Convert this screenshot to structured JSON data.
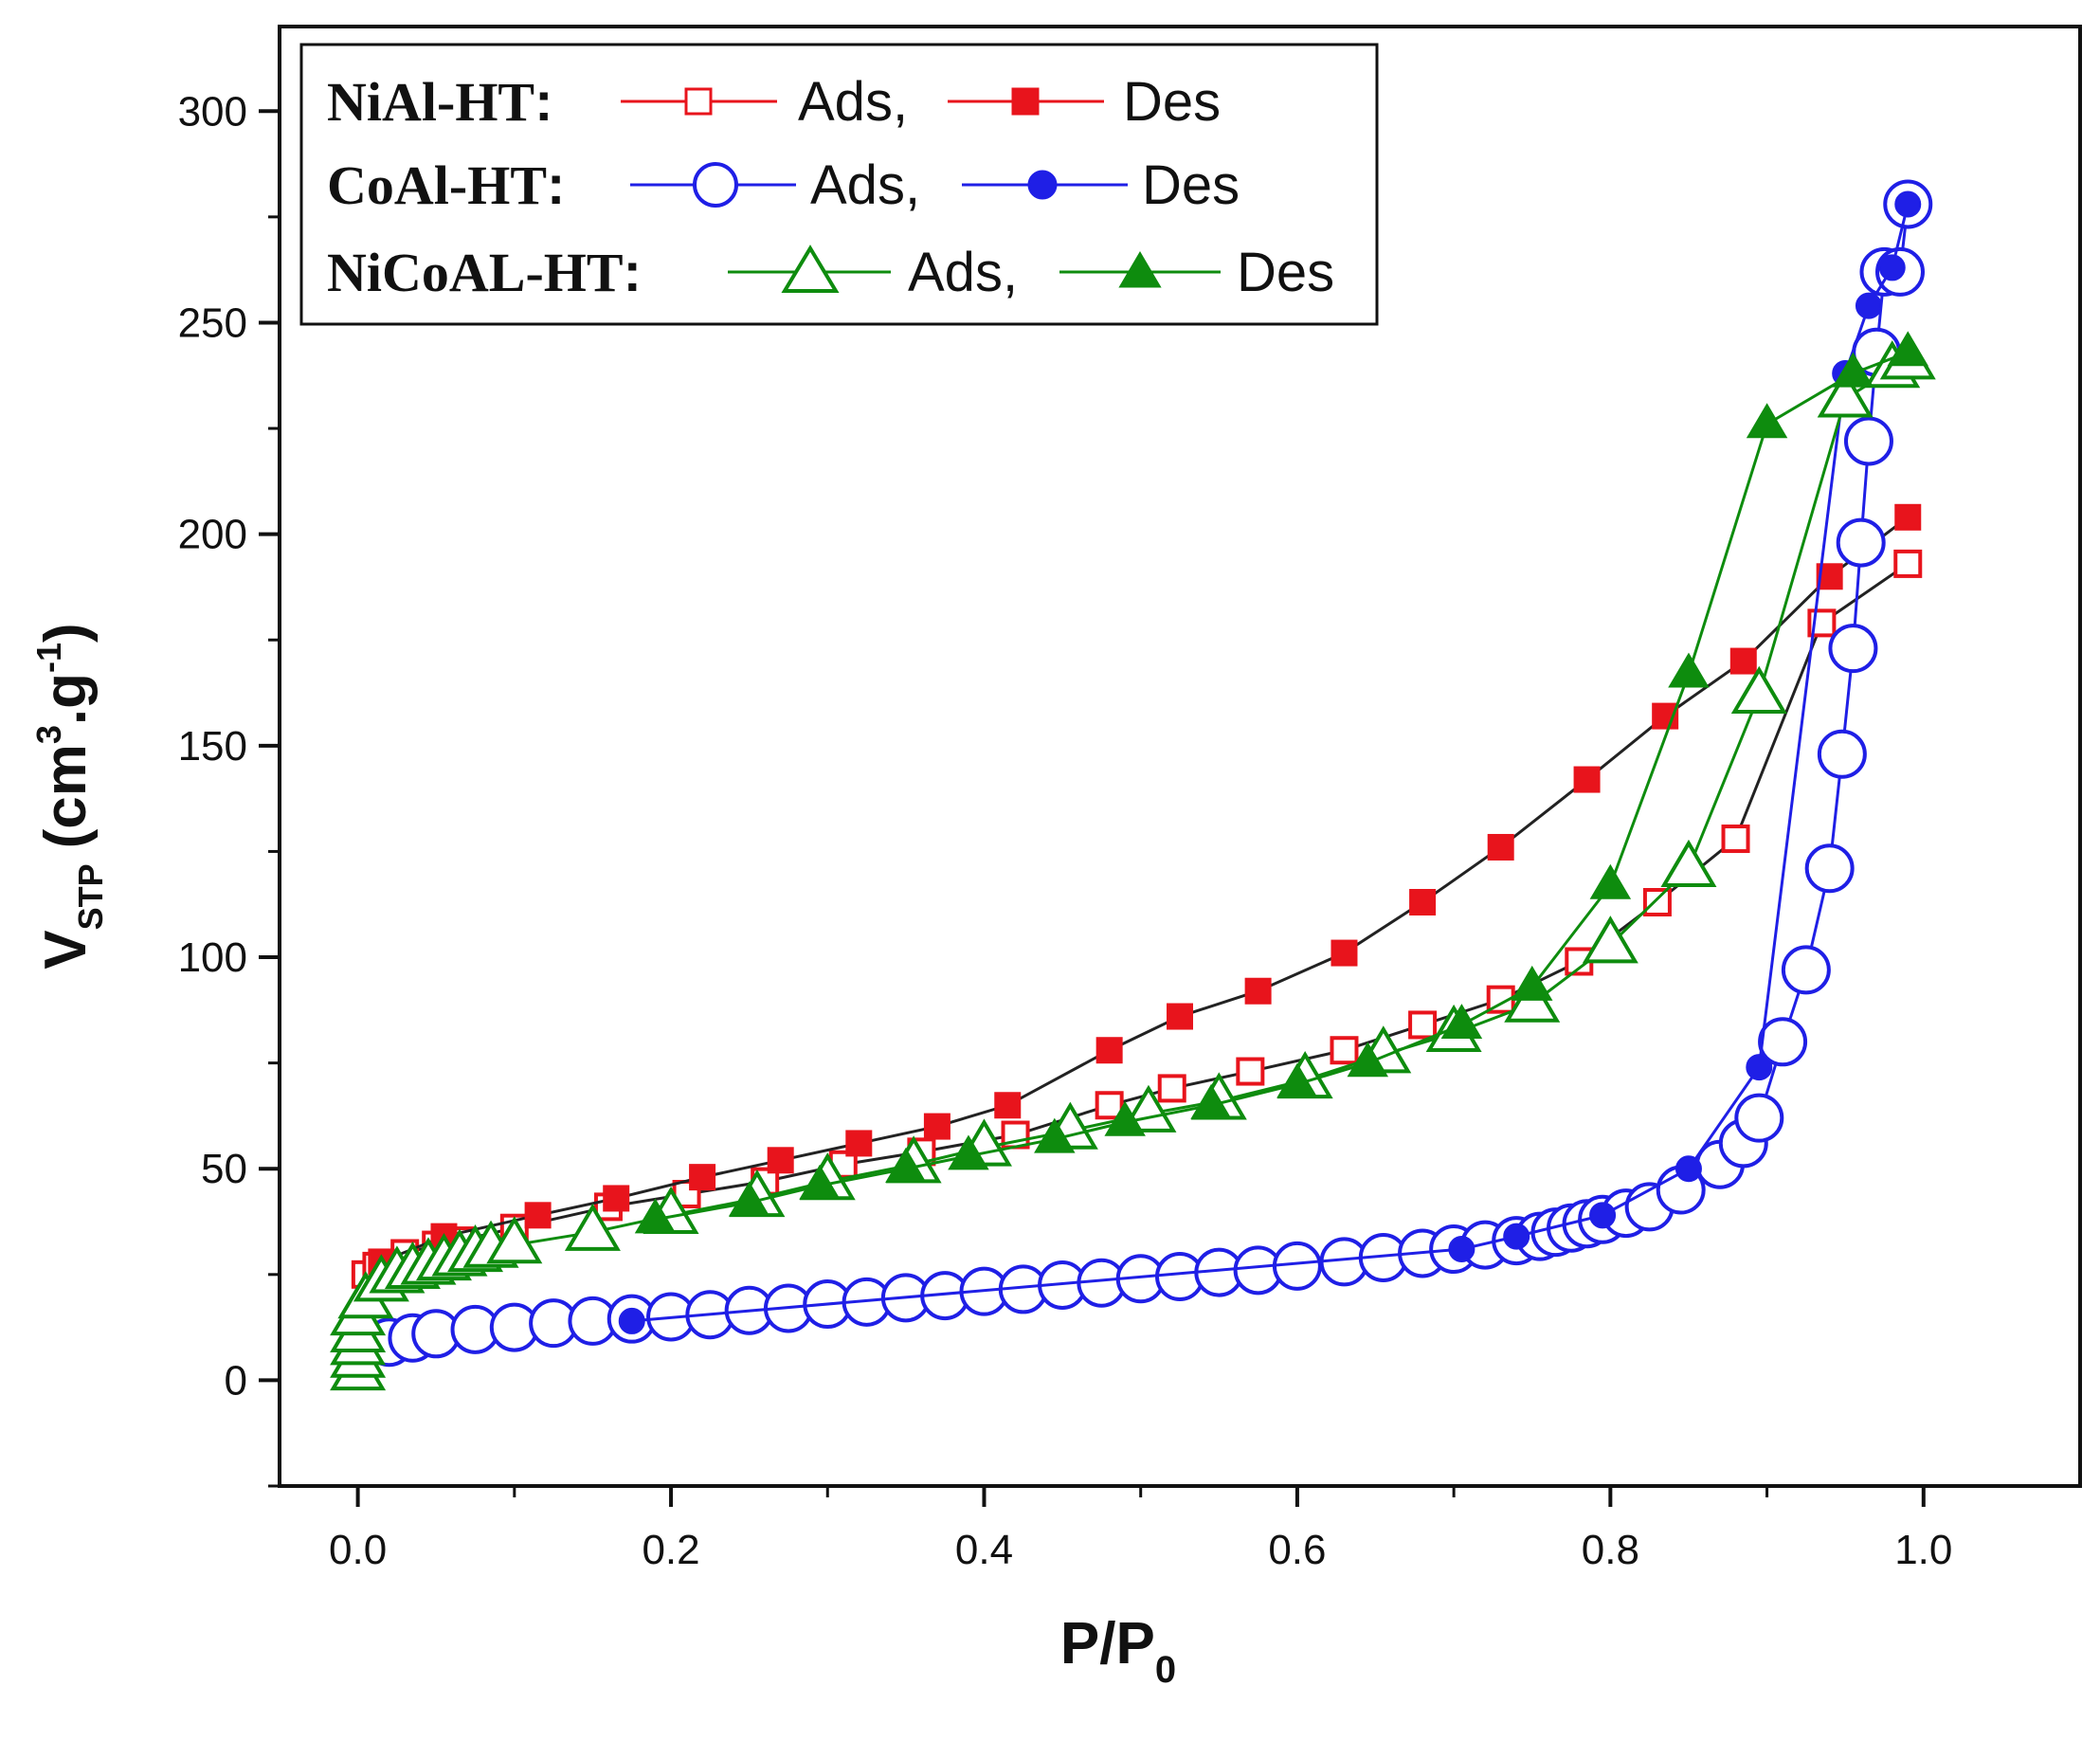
{
  "chart_data": {
    "type": "scatter",
    "title": "",
    "xlabel": "P/P",
    "xlabel_sub": "0",
    "ylabel": "V",
    "ylabel_sub": "STP",
    "ylabel_units": "(cm",
    "ylabel_units_sup": "3",
    "ylabel_units_mid": ".g",
    "ylabel_units_sup2": "-1",
    "ylabel_units_end": ")",
    "xlim": [
      -0.05,
      1.1
    ],
    "ylim": [
      -25,
      320
    ],
    "xticks": [
      0.0,
      0.2,
      0.4,
      0.6,
      0.8,
      1.0
    ],
    "xtick_labels": [
      "0.0",
      "0.2",
      "0.4",
      "0.6",
      "0.8",
      "1.0"
    ],
    "yticks": [
      0,
      50,
      100,
      150,
      200,
      250,
      300
    ],
    "ytick_labels": [
      "0",
      "50",
      "100",
      "150",
      "200",
      "250",
      "300"
    ],
    "legend_position": "top-left",
    "legend": [
      {
        "sample": "NiAl-HT",
        "ads_label": "Ads,",
        "des_label": "Des",
        "color": "#e8141c"
      },
      {
        "sample": "CoAl-HT",
        "ads_label": "Ads,",
        "des_label": "Des",
        "color": "#1f1fe6"
      },
      {
        "sample": "NiCoAL-HT",
        "ads_label": "Ads,",
        "des_label": "Des",
        "color": "#0e8c0e"
      }
    ],
    "colon": ":",
    "series": [
      {
        "name": "NiAl-HT Ads",
        "marker": "square-open",
        "color": "#e8141c",
        "line_color": "#222222",
        "x": [
          0.005,
          0.012,
          0.03,
          0.05,
          0.065,
          0.1,
          0.16,
          0.21,
          0.26,
          0.31,
          0.36,
          0.42,
          0.48,
          0.52,
          0.57,
          0.63,
          0.68,
          0.73,
          0.78,
          0.83,
          0.88,
          0.935,
          0.99
        ],
        "y": [
          25,
          27,
          30,
          32,
          33,
          36,
          41,
          44,
          47,
          51,
          54,
          58,
          65,
          69,
          73,
          78,
          84,
          90,
          99,
          113,
          128,
          179,
          193
        ]
      },
      {
        "name": "NiAl-HT Des",
        "marker": "square-filled",
        "color": "#e8141c",
        "line_color": "#222222",
        "x": [
          0.015,
          0.055,
          0.115,
          0.165,
          0.22,
          0.27,
          0.32,
          0.37,
          0.415,
          0.48,
          0.525,
          0.575,
          0.63,
          0.68,
          0.73,
          0.785,
          0.835,
          0.885,
          0.94,
          0.99
        ],
        "y": [
          28,
          34,
          39,
          43,
          48,
          52,
          56,
          60,
          65,
          78,
          86,
          92,
          101,
          113,
          126,
          142,
          157,
          170,
          190,
          204
        ]
      },
      {
        "name": "CoAl-HT Ads",
        "marker": "circle-open",
        "color": "#1f1fe6",
        "line_color": "#1f1fe6",
        "x": [
          0.02,
          0.035,
          0.05,
          0.075,
          0.1,
          0.125,
          0.15,
          0.175,
          0.2,
          0.225,
          0.25,
          0.275,
          0.3,
          0.325,
          0.35,
          0.375,
          0.4,
          0.425,
          0.45,
          0.475,
          0.5,
          0.525,
          0.55,
          0.575,
          0.6,
          0.63,
          0.655,
          0.68,
          0.7,
          0.72,
          0.74,
          0.755,
          0.765,
          0.775,
          0.785,
          0.795,
          0.81,
          0.825,
          0.845,
          0.87,
          0.885,
          0.895,
          0.91,
          0.925,
          0.94,
          0.948,
          0.955,
          0.96,
          0.965,
          0.97,
          0.975,
          0.985,
          0.99
        ],
        "y": [
          9,
          10,
          11,
          12,
          12.5,
          13.5,
          14,
          14.5,
          15,
          15.5,
          16.5,
          17,
          18,
          18.5,
          19.5,
          20,
          21,
          21.5,
          22.5,
          23,
          24,
          24.5,
          25.5,
          26,
          27,
          28,
          29,
          30,
          31,
          32,
          33,
          34,
          35,
          36,
          37,
          38,
          39.5,
          41,
          45,
          51,
          56,
          62,
          80,
          97,
          121,
          148,
          173,
          198,
          222,
          243,
          262,
          262,
          278
        ]
      },
      {
        "name": "CoAl-HT Des",
        "marker": "circle-filled",
        "color": "#1f1fe6",
        "line_color": "#1f1fe6",
        "x": [
          0.175,
          0.705,
          0.74,
          0.795,
          0.85,
          0.895,
          0.95,
          0.965,
          0.98,
          0.99
        ],
        "y": [
          14,
          31,
          34,
          39,
          50,
          74,
          238,
          254,
          263,
          278
        ]
      },
      {
        "name": "NiCoAL-HT Ads",
        "marker": "triangle-open",
        "color": "#0e8c0e",
        "line_color": "#0e8c0e",
        "x": [
          0.0,
          0.0,
          0.0,
          0.0,
          0.0,
          0.005,
          0.015,
          0.025,
          0.035,
          0.045,
          0.055,
          0.065,
          0.075,
          0.085,
          0.1,
          0.15,
          0.2,
          0.255,
          0.3,
          0.355,
          0.4,
          0.455,
          0.505,
          0.55,
          0.605,
          0.655,
          0.7,
          0.75,
          0.8,
          0.85,
          0.895,
          0.95,
          0.98,
          0.99
        ],
        "y": [
          2,
          5,
          8,
          11,
          15,
          19,
          23,
          25,
          26,
          27,
          28,
          29,
          30,
          31,
          32,
          35,
          39,
          43,
          47,
          51,
          55,
          59,
          63,
          66,
          71,
          77,
          82,
          89,
          103,
          121,
          162,
          232,
          239,
          241
        ]
      },
      {
        "name": "NiCoAL-HT Des",
        "marker": "triangle-filled",
        "color": "#0e8c0e",
        "line_color": "#0e8c0e",
        "x": [
          0.19,
          0.25,
          0.295,
          0.35,
          0.39,
          0.445,
          0.49,
          0.545,
          0.6,
          0.645,
          0.705,
          0.75,
          0.8,
          0.85,
          0.9,
          0.955,
          0.99
        ],
        "y": [
          38,
          42,
          46,
          50,
          53,
          57,
          61,
          65,
          70,
          75,
          84,
          93,
          117,
          167,
          226,
          238,
          243
        ]
      }
    ]
  }
}
